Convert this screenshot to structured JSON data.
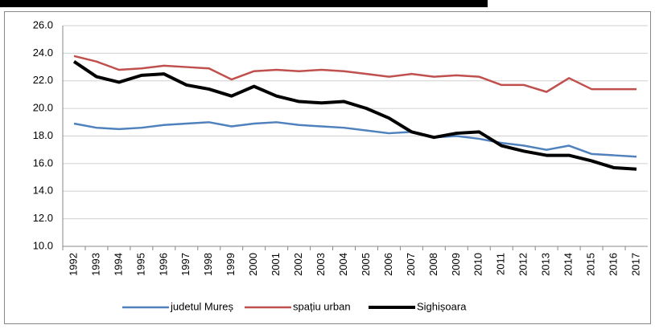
{
  "chart_data": {
    "type": "line",
    "categories": [
      "1992",
      "1993",
      "1994",
      "1995",
      "1996",
      "1997",
      "1998",
      "1999",
      "2000",
      "2001",
      "2002",
      "2003",
      "2004",
      "2005",
      "2006",
      "2007",
      "2008",
      "2009",
      "2010",
      "2011",
      "2012",
      "2013",
      "2014",
      "2015",
      "2016",
      "2017"
    ],
    "series": [
      {
        "name": "judetul Mureș",
        "color": "#4f81bd",
        "values": [
          18.9,
          18.6,
          18.5,
          18.6,
          18.8,
          18.9,
          19.0,
          18.7,
          18.9,
          19.0,
          18.8,
          18.7,
          18.6,
          18.4,
          18.2,
          18.3,
          17.9,
          18.0,
          17.8,
          17.5,
          17.3,
          17.0,
          17.3,
          16.7,
          16.6,
          16.5
        ]
      },
      {
        "name": "spațiu urban",
        "color": "#c0504d",
        "values": [
          23.8,
          23.4,
          22.8,
          22.9,
          23.1,
          23.0,
          22.9,
          22.1,
          22.7,
          22.8,
          22.7,
          22.8,
          22.7,
          22.5,
          22.3,
          22.5,
          22.3,
          22.4,
          22.3,
          21.7,
          21.7,
          21.2,
          22.2,
          21.4,
          21.4,
          21.4
        ]
      },
      {
        "name": "Sighișoara",
        "color": "#000000",
        "values": [
          23.4,
          22.3,
          21.9,
          22.4,
          22.5,
          21.7,
          21.4,
          20.9,
          21.6,
          20.9,
          20.5,
          20.4,
          20.5,
          20.0,
          19.3,
          18.3,
          17.9,
          18.2,
          18.3,
          17.3,
          16.9,
          16.6,
          16.6,
          16.2,
          15.7,
          15.6
        ]
      }
    ],
    "ylim": [
      10,
      26
    ],
    "yticks": [
      {
        "value": 10,
        "label": "10.0"
      },
      {
        "value": 12,
        "label": "12.0"
      },
      {
        "value": 14,
        "label": "14.0"
      },
      {
        "value": 16,
        "label": "16.0"
      },
      {
        "value": 18,
        "label": "18.0"
      },
      {
        "value": 20,
        "label": "20.0"
      },
      {
        "value": 22,
        "label": "22.0"
      },
      {
        "value": 24,
        "label": "24.0"
      },
      {
        "value": 26,
        "label": "26.0"
      }
    ],
    "grid": true,
    "legend": "bottom"
  }
}
